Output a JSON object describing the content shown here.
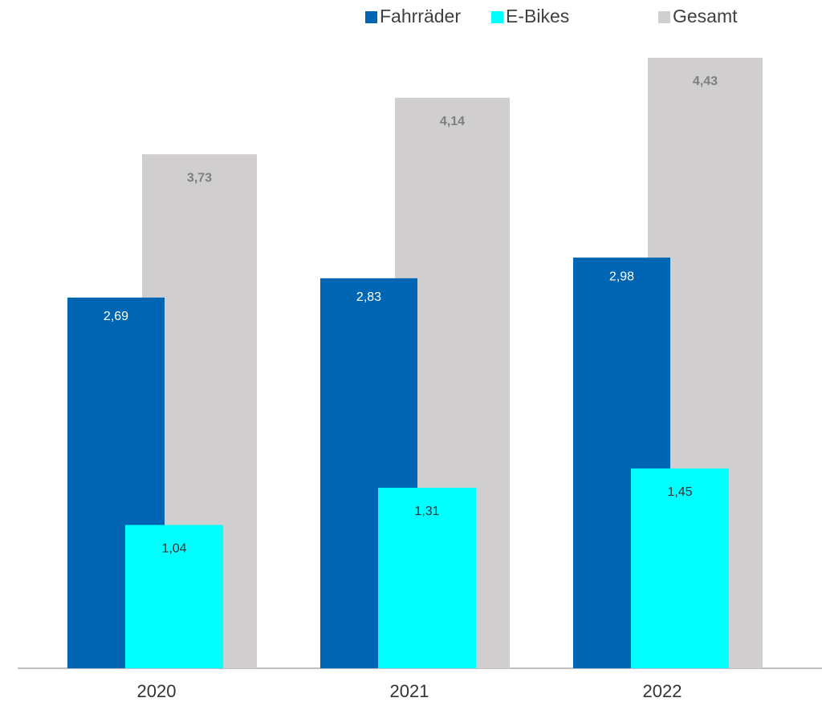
{
  "chart_data": {
    "type": "bar",
    "categories": [
      "2020",
      "2021",
      "2022"
    ],
    "series": [
      {
        "name": "Fahrräder",
        "color": "#0066b3",
        "values": [
          2.69,
          2.83,
          2.98
        ],
        "value_labels": [
          "2,69",
          "2,83",
          "2,98"
        ]
      },
      {
        "name": "E-Bikes",
        "color": "#00ffff",
        "values": [
          1.04,
          1.31,
          1.45
        ],
        "value_labels": [
          "1,04",
          "1,31",
          "1,45"
        ]
      },
      {
        "name": "Gesamt",
        "color": "#d0cece",
        "values": [
          3.73,
          4.14,
          4.43
        ],
        "value_labels": [
          "3,73",
          "4,14",
          "4,43"
        ]
      }
    ],
    "legend": "top-right"
  }
}
